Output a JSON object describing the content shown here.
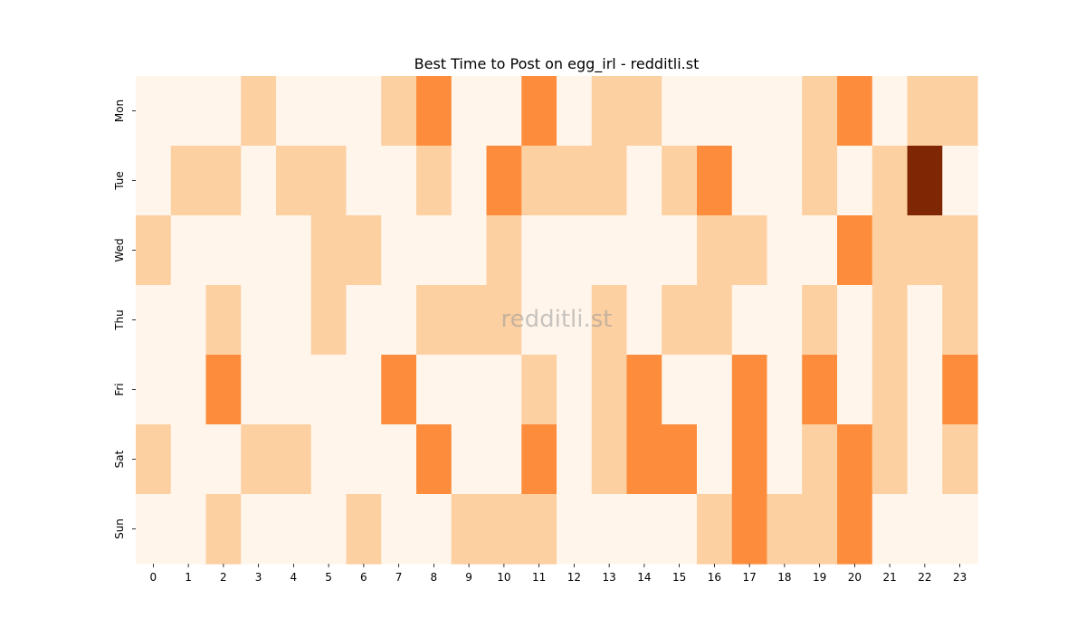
{
  "chart_data": {
    "type": "heatmap",
    "title": "Best Time to Post on egg_irl - redditli.st",
    "watermark": "redditli.st",
    "xlabel": "",
    "ylabel": "",
    "x_categories": [
      "0",
      "1",
      "2",
      "3",
      "4",
      "5",
      "6",
      "7",
      "8",
      "9",
      "10",
      "11",
      "12",
      "13",
      "14",
      "15",
      "16",
      "17",
      "18",
      "19",
      "20",
      "21",
      "22",
      "23"
    ],
    "y_categories": [
      "Mon",
      "Tue",
      "Wed",
      "Thu",
      "Fri",
      "Sat",
      "Sun"
    ],
    "values": [
      [
        0,
        0,
        0,
        1,
        0,
        0,
        0,
        1,
        2,
        0,
        0,
        2,
        0,
        1,
        1,
        0,
        0,
        0,
        0,
        1,
        2,
        0,
        1,
        1
      ],
      [
        0,
        1,
        1,
        0,
        1,
        1,
        0,
        0,
        1,
        0,
        2,
        1,
        1,
        1,
        0,
        1,
        2,
        0,
        0,
        1,
        0,
        1,
        4,
        0
      ],
      [
        1,
        0,
        0,
        0,
        0,
        1,
        1,
        0,
        0,
        0,
        1,
        0,
        0,
        0,
        0,
        0,
        1,
        1,
        0,
        0,
        2,
        1,
        1,
        1
      ],
      [
        0,
        0,
        1,
        0,
        0,
        1,
        0,
        0,
        1,
        1,
        1,
        0,
        0,
        1,
        0,
        1,
        1,
        0,
        0,
        1,
        0,
        1,
        0,
        1
      ],
      [
        0,
        0,
        2,
        0,
        0,
        0,
        0,
        2,
        0,
        0,
        0,
        1,
        0,
        1,
        2,
        0,
        0,
        2,
        0,
        2,
        0,
        1,
        0,
        2
      ],
      [
        1,
        0,
        0,
        1,
        1,
        0,
        0,
        0,
        2,
        0,
        0,
        2,
        0,
        1,
        2,
        2,
        0,
        2,
        0,
        1,
        2,
        1,
        0,
        1
      ],
      [
        0,
        0,
        1,
        0,
        0,
        0,
        1,
        0,
        0,
        1,
        1,
        1,
        0,
        0,
        0,
        0,
        1,
        2,
        1,
        1,
        2,
        0,
        0,
        0
      ]
    ],
    "color_scale": [
      "#fff5eb",
      "#fdd0a2",
      "#fd8d3c",
      "#d94801",
      "#7f2704"
    ],
    "vmin": 0,
    "vmax": 4,
    "grid": false,
    "legend": "none"
  }
}
